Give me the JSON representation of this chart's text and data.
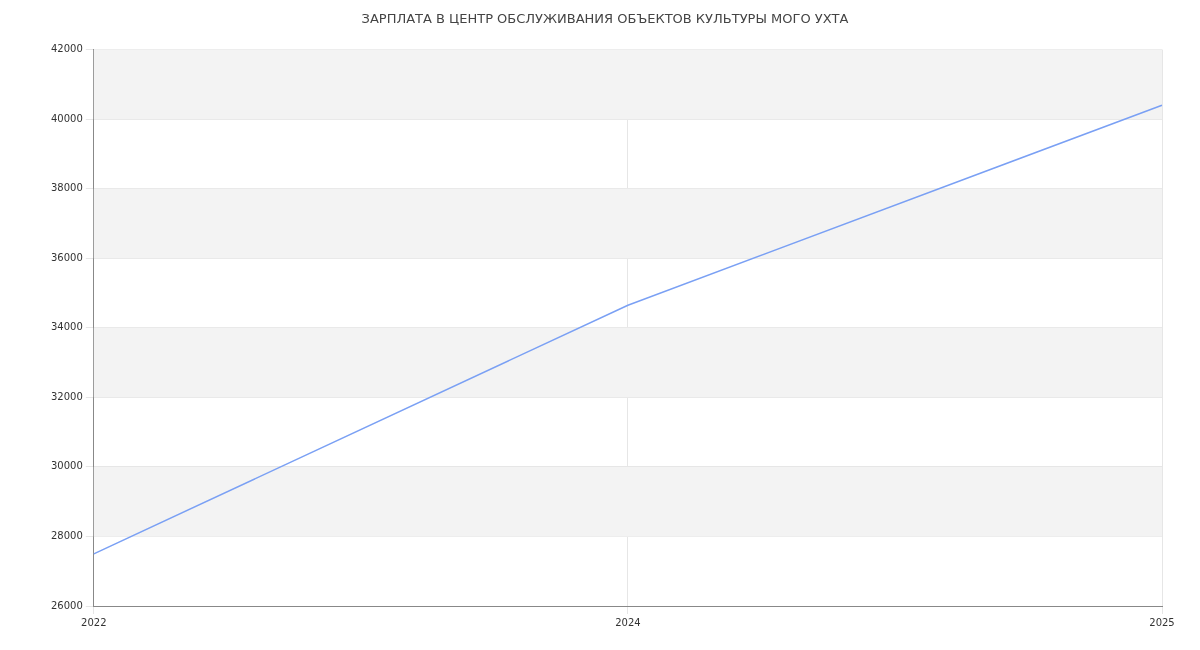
{
  "chart_data": {
    "type": "line",
    "title": "ЗАРПЛАТА В ЦЕНТР ОБСЛУЖИВАНИЯ ОБЪЕКТОВ КУЛЬТУРЫ МОГО УХТА",
    "categories": [
      "2022",
      "2024",
      "2025"
    ],
    "series": [
      {
        "color": "#7aa0f4",
        "values": [
          27500,
          34650,
          40400
        ]
      }
    ],
    "ylim": [
      26000,
      42000
    ],
    "yticks": [
      26000,
      28000,
      30000,
      32000,
      34000,
      36000,
      38000,
      40000,
      42000
    ],
    "grid": true,
    "legend": false,
    "marker": "none",
    "line_style": "solid"
  }
}
